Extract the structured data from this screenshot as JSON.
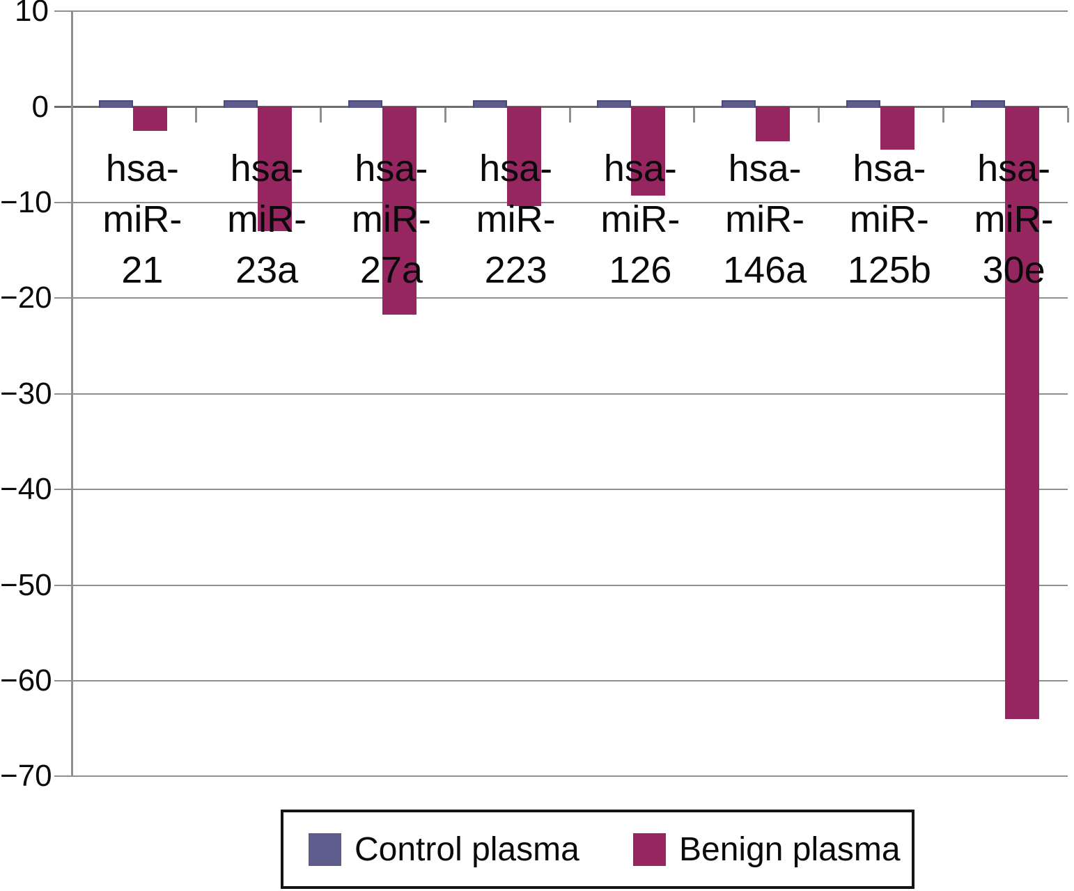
{
  "chart_data": {
    "type": "bar",
    "title": "",
    "xlabel": "",
    "ylabel": "",
    "categories": [
      "hsa-miR-21",
      "hsa-miR-23a",
      "hsa-miR-27a",
      "hsa-miR-223",
      "hsa-miR-126",
      "hsa-miR-146a",
      "hsa-miR-125b",
      "hsa-miR-30e"
    ],
    "category_label_lines": [
      [
        "hsa-",
        "miR-",
        "21"
      ],
      [
        "hsa-",
        "miR-",
        "23a"
      ],
      [
        "hsa-",
        "miR-",
        "27a"
      ],
      [
        "hsa-",
        "miR-",
        "223"
      ],
      [
        "hsa-",
        "miR-",
        "126"
      ],
      [
        "hsa-",
        "miR-",
        "146a"
      ],
      [
        "hsa-",
        "miR-",
        "125b"
      ],
      [
        "hsa-",
        "miR-",
        "30e"
      ]
    ],
    "series": [
      {
        "name": "Control plasma",
        "color": "#5e5b8d",
        "values": [
          0.7,
          0.7,
          0.7,
          0.7,
          0.7,
          0.7,
          0.7,
          0.7
        ]
      },
      {
        "name": "Benign plasma",
        "color": "#95265f",
        "values": [
          -2.5,
          -13,
          -21.7,
          -10.4,
          -9.3,
          -3.6,
          -4.5,
          -64
        ]
      }
    ],
    "y_ticks": [
      {
        "value": 10,
        "label": "10"
      },
      {
        "value": 0,
        "label": "0"
      },
      {
        "value": -10,
        "label": "−10"
      },
      {
        "value": -20,
        "label": "−20"
      },
      {
        "value": -30,
        "label": "−30"
      },
      {
        "value": -40,
        "label": "−40"
      },
      {
        "value": -50,
        "label": "−50"
      },
      {
        "value": -60,
        "label": "−60"
      },
      {
        "value": -70,
        "label": "−70"
      }
    ],
    "ylim": [
      -70,
      10
    ],
    "grid": true,
    "legend_position": "bottom",
    "background_color": "#ffffff",
    "gridline_color": "#8f8f8f"
  }
}
